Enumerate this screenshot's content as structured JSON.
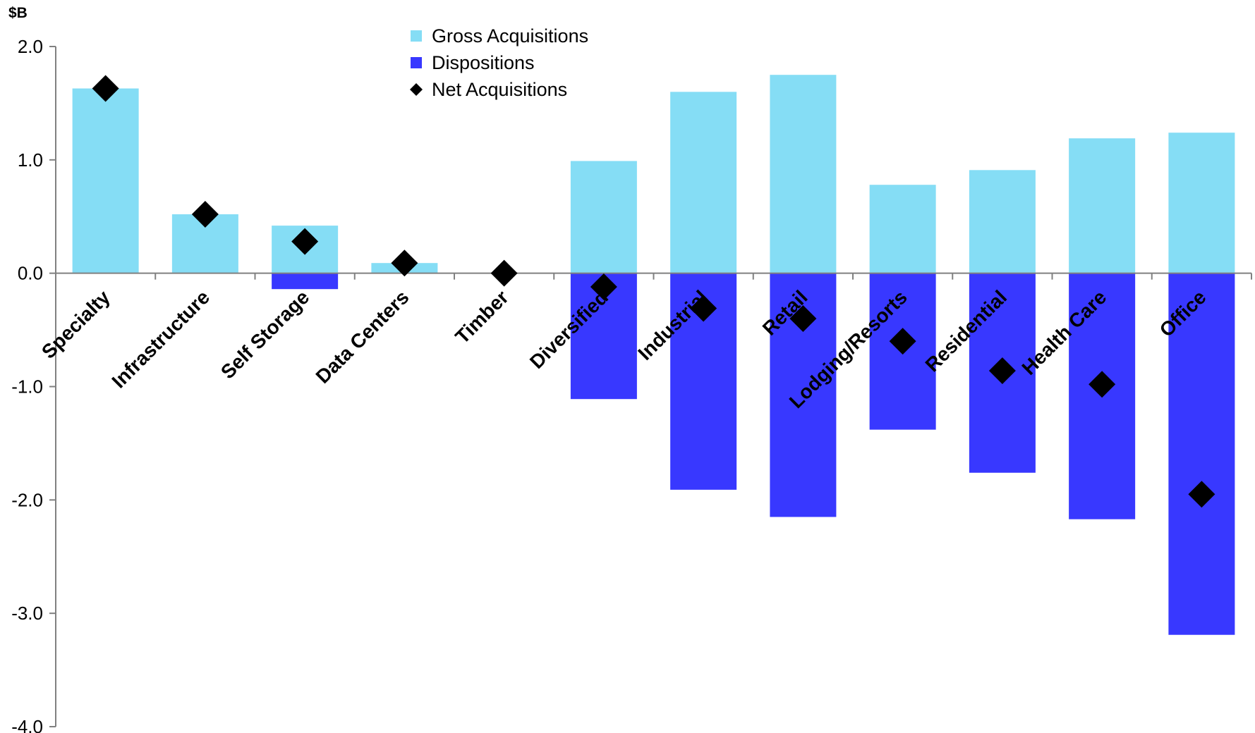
{
  "chart_data": {
    "type": "bar",
    "unit_label": "$B",
    "categories": [
      "Specialty",
      "Infrastructure",
      "Self Storage",
      "Data Centers",
      "Timber",
      "Diversified",
      "Industrial",
      "Retail",
      "Lodging/Resorts",
      "Residential",
      "Health Care",
      "Office"
    ],
    "series": [
      {
        "name": "Gross Acquisitions",
        "kind": "bar",
        "color": "#85DDF5",
        "values": [
          1.63,
          0.52,
          0.42,
          0.09,
          0.0,
          0.99,
          1.6,
          1.75,
          0.78,
          0.91,
          1.19,
          1.24
        ]
      },
      {
        "name": "Dispositions",
        "kind": "bar",
        "color": "#3838FF",
        "values": [
          0.0,
          0.0,
          -0.14,
          0.0,
          0.0,
          -1.11,
          -1.91,
          -2.15,
          -1.38,
          -1.76,
          -2.17,
          -3.19
        ]
      },
      {
        "name": "Net Acquisitions",
        "kind": "marker",
        "marker": "diamond",
        "color": "#000000",
        "values": [
          1.63,
          0.52,
          0.28,
          0.09,
          0.0,
          -0.12,
          -0.31,
          -0.4,
          -0.6,
          -0.86,
          -0.98,
          -1.95
        ]
      }
    ],
    "ylim": [
      -4.0,
      2.0
    ],
    "yticks": [
      2.0,
      1.0,
      0.0,
      -1.0,
      -2.0,
      -3.0,
      -4.0
    ],
    "ytick_labels": [
      "2.0",
      "1.0",
      "0.0",
      "-1.0",
      "-2.0",
      "-3.0",
      "-4.0"
    ],
    "grid": false,
    "legend_position": "top-center"
  }
}
